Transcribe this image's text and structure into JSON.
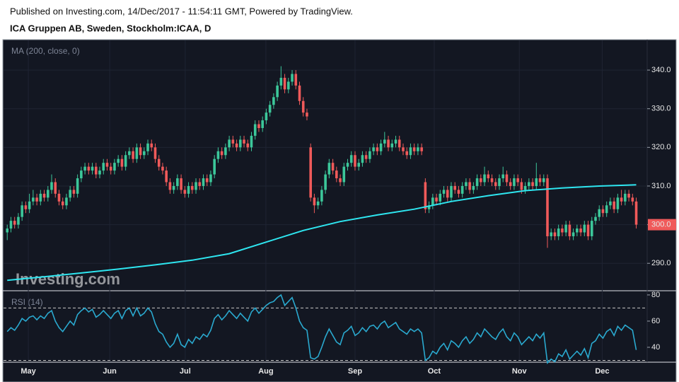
{
  "chart_data": {
    "type": "candlestick",
    "title": "Published on Investing.com, 14/Dec/2017 - 11:54:11 GMT, Powered by TradingView.",
    "subtitle": "ICA Gruppen AB, Sweden, Stockholm:ICAA, D",
    "watermark": "Investing.com",
    "xlim": [
      -1,
      172
    ],
    "xticks": [
      {
        "value": 5.7,
        "label": "May"
      },
      {
        "value": 27.7,
        "label": "Jun"
      },
      {
        "value": 48.1,
        "label": "Jul"
      },
      {
        "value": 69.9,
        "label": "Aug"
      },
      {
        "value": 94,
        "label": "Sep"
      },
      {
        "value": 115.4,
        "label": "Oct"
      },
      {
        "value": 138.4,
        "label": "Nov"
      },
      {
        "value": 160.8,
        "label": "Dec"
      }
    ],
    "ylim": [
      282.9,
      347.7
    ],
    "yticks": [
      {
        "value": 290,
        "label": "290.0"
      },
      {
        "value": 300,
        "label": "300.0"
      },
      {
        "value": 310,
        "label": "310.0"
      },
      {
        "value": 320,
        "label": "320.0"
      },
      {
        "value": 330,
        "label": "330.0"
      },
      {
        "value": 340,
        "label": "340.0"
      }
    ],
    "up_color": "#3cc79a",
    "down_color": "#f05a5a",
    "last_price": {
      "value": 300,
      "label": "300.0"
    },
    "candles": [
      [
        298,
        300,
        296,
        299
      ],
      [
        299,
        302,
        298,
        301
      ],
      [
        301,
        302,
        299,
        300
      ],
      [
        300,
        303,
        299,
        302
      ],
      [
        302,
        306,
        301,
        305
      ],
      [
        305,
        306,
        303,
        304
      ],
      [
        304,
        308,
        303,
        306
      ],
      [
        306,
        309,
        305,
        307
      ],
      [
        307,
        308,
        305,
        306
      ],
      [
        306,
        309,
        305,
        308
      ],
      [
        308,
        309,
        306,
        307
      ],
      [
        307,
        310,
        306,
        309
      ],
      [
        309,
        313,
        308,
        311
      ],
      [
        311,
        312,
        307,
        308
      ],
      [
        308,
        309,
        305,
        306
      ],
      [
        306,
        307,
        304,
        305
      ],
      [
        305,
        308,
        304,
        307
      ],
      [
        307,
        310,
        306,
        309
      ],
      [
        309,
        310,
        307,
        308
      ],
      [
        308,
        313,
        307,
        312
      ],
      [
        312,
        315,
        311,
        314
      ],
      [
        314,
        316,
        313,
        315
      ],
      [
        315,
        316,
        313,
        314
      ],
      [
        314,
        316,
        313,
        315
      ],
      [
        315,
        316,
        312,
        313
      ],
      [
        313,
        315,
        312,
        314
      ],
      [
        314,
        317,
        313,
        316
      ],
      [
        316,
        317,
        314,
        315
      ],
      [
        315,
        316,
        313,
        314
      ],
      [
        314,
        317,
        313,
        316
      ],
      [
        316,
        318,
        315,
        317
      ],
      [
        317,
        318,
        314,
        315
      ],
      [
        315,
        319,
        314,
        318
      ],
      [
        318,
        320,
        317,
        319
      ],
      [
        319,
        320,
        316,
        317
      ],
      [
        317,
        321,
        316,
        320
      ],
      [
        320,
        321,
        317,
        318
      ],
      [
        318,
        320,
        317,
        319
      ],
      [
        319,
        322,
        318,
        321
      ],
      [
        321,
        322,
        319,
        320
      ],
      [
        320,
        321,
        316,
        317
      ],
      [
        317,
        318,
        314,
        315
      ],
      [
        315,
        316,
        313,
        314
      ],
      [
        314,
        315,
        310,
        311
      ],
      [
        311,
        312,
        308,
        309
      ],
      [
        309,
        311,
        308,
        310
      ],
      [
        310,
        313,
        309,
        312
      ],
      [
        312,
        313,
        308,
        309
      ],
      [
        309,
        310,
        307,
        308
      ],
      [
        308,
        311,
        307,
        310
      ],
      [
        310,
        311,
        308,
        309
      ],
      [
        309,
        312,
        308,
        311
      ],
      [
        311,
        312,
        309,
        310
      ],
      [
        310,
        313,
        309,
        312
      ],
      [
        312,
        313,
        310,
        311
      ],
      [
        311,
        314,
        310,
        313
      ],
      [
        313,
        318,
        312,
        317
      ],
      [
        317,
        320,
        316,
        319
      ],
      [
        319,
        320,
        317,
        318
      ],
      [
        318,
        321,
        317,
        320
      ],
      [
        320,
        323,
        319,
        322
      ],
      [
        322,
        323,
        320,
        321
      ],
      [
        321,
        322,
        319,
        320
      ],
      [
        320,
        323,
        319,
        322
      ],
      [
        322,
        323,
        320,
        321
      ],
      [
        321,
        322,
        319,
        320
      ],
      [
        320,
        324,
        319,
        323
      ],
      [
        323,
        327,
        322,
        326
      ],
      [
        326,
        327,
        324,
        325
      ],
      [
        325,
        328,
        324,
        327
      ],
      [
        327,
        330,
        326,
        329
      ],
      [
        329,
        332,
        328,
        331
      ],
      [
        331,
        334,
        330,
        333
      ],
      [
        333,
        337,
        332,
        336
      ],
      [
        336,
        341,
        335,
        338
      ],
      [
        338,
        339,
        334,
        335
      ],
      [
        335,
        338,
        334,
        337
      ],
      [
        337,
        340,
        336,
        339
      ],
      [
        339,
        340,
        335,
        336
      ],
      [
        336,
        337,
        331,
        332
      ],
      [
        332,
        333,
        328,
        329
      ],
      [
        329,
        330,
        327,
        328
      ],
      [
        320,
        321,
        306,
        307
      ],
      [
        307,
        308,
        303,
        305
      ],
      [
        305,
        307,
        304,
        306
      ],
      [
        306,
        310,
        305,
        309
      ],
      [
        309,
        314,
        308,
        313
      ],
      [
        313,
        317,
        312,
        316
      ],
      [
        316,
        317,
        313,
        314
      ],
      [
        314,
        315,
        311,
        312
      ],
      [
        312,
        313,
        310,
        311
      ],
      [
        311,
        316,
        310,
        315
      ],
      [
        315,
        317,
        314,
        316
      ],
      [
        316,
        319,
        315,
        318
      ],
      [
        318,
        319,
        314,
        315
      ],
      [
        315,
        317,
        314,
        316
      ],
      [
        316,
        319,
        315,
        318
      ],
      [
        318,
        319,
        316,
        317
      ],
      [
        317,
        320,
        316,
        319
      ],
      [
        319,
        321,
        318,
        320
      ],
      [
        320,
        321,
        318,
        319
      ],
      [
        319,
        322,
        318,
        321
      ],
      [
        321,
        324,
        320,
        322
      ],
      [
        322,
        323,
        319,
        320
      ],
      [
        320,
        322,
        319,
        321
      ],
      [
        321,
        323,
        320,
        322
      ],
      [
        322,
        323,
        319,
        320
      ],
      [
        320,
        321,
        318,
        319
      ],
      [
        319,
        320,
        317,
        318
      ],
      [
        318,
        321,
        317,
        320
      ],
      [
        320,
        321,
        318,
        319
      ],
      [
        319,
        321,
        318,
        320
      ],
      [
        320,
        321,
        318,
        319
      ],
      [
        311,
        312,
        303,
        304
      ],
      [
        304,
        306,
        303,
        305
      ],
      [
        305,
        308,
        304,
        307
      ],
      [
        307,
        308,
        305,
        306
      ],
      [
        306,
        309,
        305,
        308
      ],
      [
        308,
        310,
        307,
        309
      ],
      [
        309,
        310,
        306,
        307
      ],
      [
        307,
        311,
        306,
        310
      ],
      [
        310,
        311,
        308,
        309
      ],
      [
        309,
        310,
        307,
        308
      ],
      [
        308,
        311,
        307,
        310
      ],
      [
        310,
        312,
        309,
        311
      ],
      [
        311,
        312,
        308,
        309
      ],
      [
        309,
        311,
        308,
        310
      ],
      [
        310,
        313,
        309,
        312
      ],
      [
        312,
        313,
        310,
        311
      ],
      [
        311,
        315,
        310,
        313
      ],
      [
        313,
        314,
        311,
        312
      ],
      [
        312,
        313,
        310,
        311
      ],
      [
        311,
        312,
        309,
        310
      ],
      [
        310,
        313,
        309,
        312
      ],
      [
        312,
        315,
        311,
        313
      ],
      [
        313,
        314,
        310,
        311
      ],
      [
        311,
        312,
        309,
        310
      ],
      [
        310,
        313,
        309,
        312
      ],
      [
        312,
        313,
        310,
        311
      ],
      [
        311,
        312,
        308,
        309
      ],
      [
        309,
        311,
        308,
        310
      ],
      [
        310,
        312,
        309,
        311
      ],
      [
        311,
        312,
        309,
        310
      ],
      [
        310,
        316,
        309,
        312
      ],
      [
        312,
        313,
        310,
        311
      ],
      [
        311,
        313,
        310,
        312
      ],
      [
        312,
        313,
        294,
        297
      ],
      [
        297,
        299,
        296,
        298
      ],
      [
        298,
        299,
        296,
        297
      ],
      [
        297,
        300,
        296,
        299
      ],
      [
        299,
        300,
        297,
        298
      ],
      [
        298,
        301,
        297,
        300
      ],
      [
        300,
        301,
        296,
        297
      ],
      [
        297,
        299,
        296,
        298
      ],
      [
        298,
        300,
        297,
        299
      ],
      [
        299,
        300,
        297,
        298
      ],
      [
        298,
        301,
        297,
        300
      ],
      [
        300,
        301,
        296,
        297
      ],
      [
        297,
        302,
        296,
        301
      ],
      [
        301,
        303,
        300,
        302
      ],
      [
        302,
        305,
        301,
        304
      ],
      [
        304,
        305,
        302,
        303
      ],
      [
        303,
        306,
        302,
        305
      ],
      [
        305,
        307,
        304,
        306
      ],
      [
        306,
        307,
        303,
        304
      ],
      [
        304,
        308,
        303,
        307
      ],
      [
        307,
        309,
        305,
        306
      ],
      [
        306,
        309,
        305,
        308
      ],
      [
        308,
        309,
        306,
        307
      ],
      [
        307,
        308,
        305,
        306
      ],
      [
        306,
        307,
        299,
        300
      ]
    ],
    "ma": {
      "name": "MA (200, close, 0)",
      "color": "#2ee6f0",
      "x": [
        0,
        10,
        20,
        30,
        40,
        50,
        60,
        70,
        80,
        90,
        100,
        110,
        120,
        130,
        140,
        150,
        160,
        170
      ],
      "values": [
        285.6,
        286.5,
        287.5,
        288.5,
        289.6,
        290.8,
        292.5,
        295.5,
        298.5,
        300.8,
        302.5,
        304,
        306,
        307.5,
        308.8,
        309.5,
        310.0,
        310.3
      ]
    },
    "rsi": {
      "name": "RSI (14)",
      "color": "#2aa9cf",
      "ylim": [
        29.7,
        83.2
      ],
      "yticks": [
        40,
        60,
        80
      ],
      "levels": [
        70,
        30
      ],
      "values": [
        52,
        55,
        53,
        57,
        62,
        60,
        63,
        64,
        61,
        64,
        62,
        66,
        68,
        60,
        55,
        52,
        56,
        60,
        57,
        65,
        68,
        70,
        67,
        69,
        63,
        65,
        68,
        65,
        62,
        66,
        68,
        62,
        68,
        70,
        64,
        70,
        64,
        66,
        70,
        67,
        58,
        52,
        50,
        44,
        40,
        43,
        50,
        42,
        40,
        46,
        43,
        48,
        46,
        50,
        48,
        53,
        62,
        65,
        61,
        64,
        68,
        65,
        62,
        66,
        63,
        60,
        67,
        70,
        66,
        69,
        72,
        74,
        75,
        78,
        80,
        72,
        75,
        78,
        70,
        60,
        55,
        53,
        32,
        31,
        33,
        40,
        48,
        54,
        49,
        44,
        42,
        51,
        53,
        56,
        49,
        51,
        55,
        52,
        56,
        57,
        54,
        58,
        60,
        55,
        57,
        59,
        54,
        52,
        50,
        54,
        52,
        54,
        51,
        30,
        32,
        37,
        35,
        40,
        43,
        38,
        45,
        43,
        40,
        45,
        48,
        43,
        46,
        51,
        48,
        54,
        51,
        48,
        46,
        51,
        54,
        48,
        45,
        51,
        48,
        42,
        45,
        48,
        45,
        50,
        47,
        51,
        28,
        31,
        29,
        35,
        33,
        38,
        31,
        34,
        37,
        34,
        39,
        32,
        43,
        45,
        50,
        47,
        52,
        54,
        49,
        56,
        53,
        57,
        55,
        53,
        38
      ]
    }
  }
}
